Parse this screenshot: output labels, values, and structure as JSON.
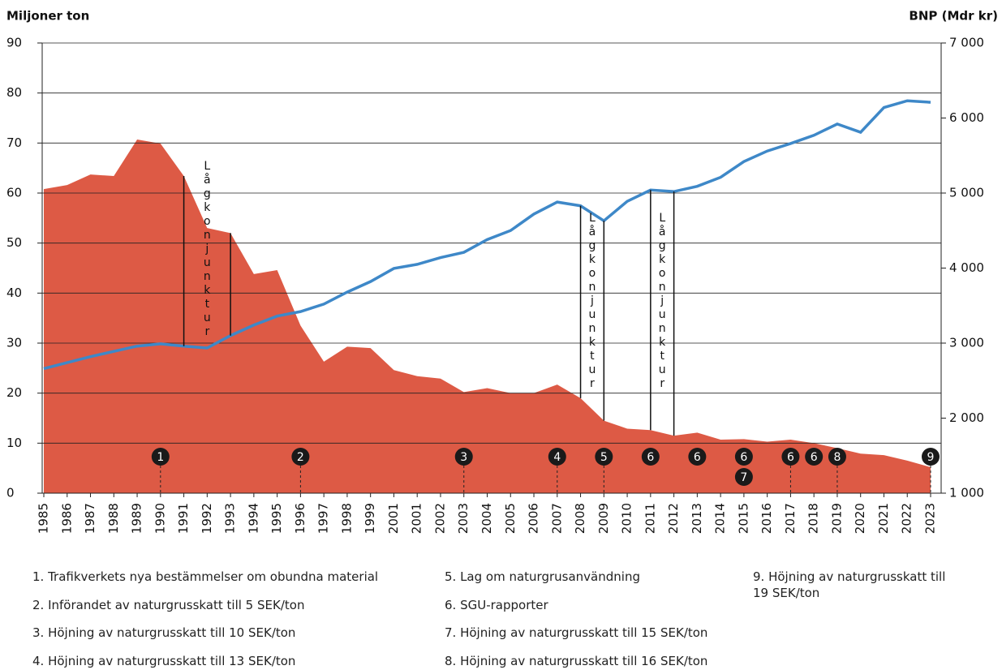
{
  "chart_data": {
    "type": "area-line",
    "y_label": "Miljoner ton",
    "y2_label": "BNP (Mdr kr)",
    "categories": [
      "1985",
      "1986",
      "1987",
      "1988",
      "1989",
      "1990",
      "1991",
      "1992",
      "1993",
      "1994",
      "1995",
      "1996",
      "1997",
      "1998",
      "1999",
      "2001",
      "2001",
      "2002",
      "2003",
      "2004",
      "2005",
      "2006",
      "2007",
      "2008",
      "2009",
      "2010",
      "2011",
      "2012",
      "2013",
      "2014",
      "2015",
      "2016",
      "2017",
      "2018",
      "2019",
      "2020",
      "2021",
      "2022",
      "2023"
    ],
    "series": [
      {
        "type": "area",
        "color": "#dd5a45",
        "values": [
          60.8,
          61.6,
          63.7,
          63.4,
          70.7,
          69.9,
          63.4,
          53.0,
          52.0,
          43.8,
          44.6,
          33.5,
          26.3,
          29.3,
          29.0,
          24.6,
          23.4,
          22.9,
          20.2,
          21.0,
          20.0,
          20.0,
          21.7,
          19.0,
          14.5,
          12.9,
          12.6,
          11.5,
          12.1,
          10.7,
          10.8,
          10.3,
          10.7,
          10.0,
          9.0,
          7.9,
          7.6,
          6.5,
          5.2
        ]
      },
      {
        "type": "line",
        "axis": "y2",
        "color": "#3e88c8",
        "values": [
          2660,
          2740,
          2820,
          2890,
          2960,
          2990,
          2960,
          2935,
          3100,
          3240,
          3360,
          3420,
          3520,
          3680,
          3820,
          3995,
          4050,
          4140,
          4210,
          4380,
          4500,
          4720,
          4880,
          4830,
          4630,
          4890,
          5040,
          5020,
          5090,
          5210,
          5420,
          5560,
          5660,
          5770,
          5920,
          5810,
          6140,
          6230,
          6210
        ]
      }
    ],
    "ylim": [
      0,
      90
    ],
    "yticks": [
      0,
      10,
      20,
      30,
      40,
      50,
      60,
      70,
      80,
      90
    ],
    "y2lim": [
      1000,
      7000
    ],
    "y2ticks": [
      {
        "value": 1000,
        "label": "1 000"
      },
      {
        "value": 2000,
        "label": "2 000"
      },
      {
        "value": 3000,
        "label": "3 000"
      },
      {
        "value": 4000,
        "label": "4 000"
      },
      {
        "value": 5000,
        "label": "5 000"
      },
      {
        "value": 6000,
        "label": "6 000"
      },
      {
        "value": 7000,
        "label": "7 000"
      }
    ],
    "grid": true,
    "recessions": [
      {
        "label": "Lågkonjunktur",
        "from": "1991",
        "to": "1993"
      },
      {
        "label": "Lågkonjunktur",
        "from": "2008",
        "to": "2009"
      },
      {
        "label": "Lågkonjunktur",
        "from": "2011",
        "to": "2012"
      }
    ],
    "markers": [
      {
        "label": "1",
        "category": "1990",
        "guide": true
      },
      {
        "label": "2",
        "category": "1996",
        "guide": true
      },
      {
        "label": "3",
        "category": "2003",
        "guide": true
      },
      {
        "label": "4",
        "category": "2007",
        "guide": true
      },
      {
        "label": "5",
        "category": "2009",
        "guide": true
      },
      {
        "label": "6",
        "category": "2011",
        "guide": false
      },
      {
        "label": "6",
        "category": "2013",
        "guide": false
      },
      {
        "label": "6",
        "category": "2015",
        "guide": false
      },
      {
        "label": "7",
        "category": "2015",
        "guide": false
      },
      {
        "label": "6",
        "category": "2017",
        "guide": true
      },
      {
        "label": "6",
        "category": "2018",
        "guide": false
      },
      {
        "label": "8",
        "category": "2019",
        "guide": true
      },
      {
        "label": "9",
        "category": "2023",
        "guide": true
      }
    ],
    "notes": [
      "1. Trafikverkets nya bestämmelser om obundna material",
      "2. Införandet av naturgrusskatt till 5 SEK/ton",
      "3. Höjning av naturgrusskatt till 10 SEK/ton",
      "4. Höjning av naturgrusskatt till 13 SEK/ton",
      "5. Lag om naturgrusanvändning",
      "6. SGU-rapporter",
      "7. Höjning av naturgrusskatt till 15 SEK/ton",
      "8. Höjning av naturgrusskatt till 16 SEK/ton",
      "9. Höjning av naturgrusskatt till 19 SEK/ton"
    ]
  }
}
